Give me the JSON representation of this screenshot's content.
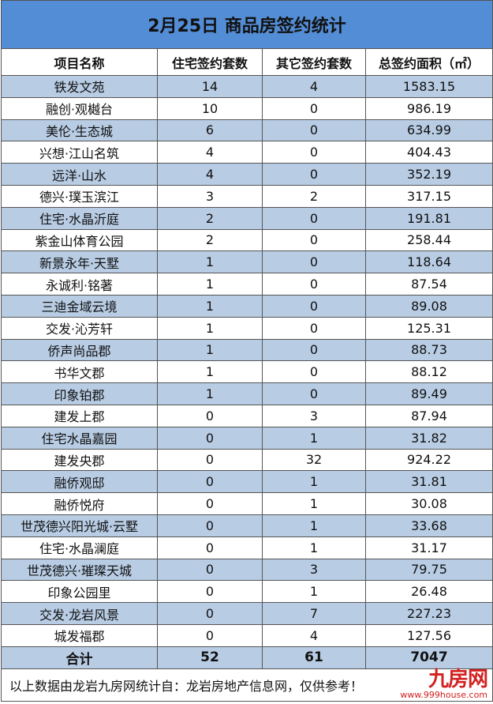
{
  "title": "2月25日 商品房签约统计",
  "headers": [
    "项目名称",
    "住宅签约套数",
    "其它签约套数",
    "总签约面积（㎡）"
  ],
  "rows": [
    [
      "铁发文苑",
      "14",
      "4",
      "1583.15"
    ],
    [
      "融创·观樾台",
      "10",
      "0",
      "986.19"
    ],
    [
      "美伦·生态城",
      "6",
      "0",
      "634.99"
    ],
    [
      "兴想·江山名筑",
      "4",
      "0",
      "404.43"
    ],
    [
      "远洋·山水",
      "4",
      "0",
      "352.19"
    ],
    [
      "德兴·璞玉滨江",
      "3",
      "2",
      "317.15"
    ],
    [
      "住宅·水晶沂庭",
      "2",
      "0",
      "191.81"
    ],
    [
      "紫金山体育公园",
      "2",
      "0",
      "258.44"
    ],
    [
      "新景永年·天墅",
      "1",
      "0",
      "118.64"
    ],
    [
      "永诚利·铭著",
      "1",
      "0",
      "87.54"
    ],
    [
      "三迪金域云境",
      "1",
      "0",
      "89.08"
    ],
    [
      "交发·沁芳轩",
      "1",
      "0",
      "125.31"
    ],
    [
      "侨声尚品郡",
      "1",
      "0",
      "88.73"
    ],
    [
      "书华文郡",
      "1",
      "0",
      "88.12"
    ],
    [
      "印象铂郡",
      "1",
      "0",
      "89.49"
    ],
    [
      "建发上郡",
      "0",
      "3",
      "87.94"
    ],
    [
      "住宅水晶嘉园",
      "0",
      "1",
      "31.82"
    ],
    [
      "建发央郡",
      "0",
      "32",
      "924.22"
    ],
    [
      "融侨观邸",
      "0",
      "1",
      "31.81"
    ],
    [
      "融侨悦府",
      "0",
      "1",
      "30.08"
    ],
    [
      "世茂德兴阳光城·云墅",
      "0",
      "1",
      "33.68"
    ],
    [
      "住宅·水晶澜庭",
      "0",
      "1",
      "31.17"
    ],
    [
      "世茂德兴·璀璨天城",
      "0",
      "3",
      "79.75"
    ],
    [
      "印象公园里",
      "0",
      "1",
      "26.48"
    ],
    [
      "交发·龙岩风景",
      "0",
      "7",
      "227.23"
    ],
    [
      "城发福郡",
      "0",
      "4",
      "127.56"
    ]
  ],
  "total": [
    "合计",
    "52",
    "61",
    "7047"
  ],
  "footer": "以上数据由龙岩九房网统计自：龙岩房地产信息网，仅供参考！",
  "watermark": {
    "logo": "九房网",
    "url": "www.999house.com"
  },
  "colors": {
    "title_bg": "#538dd5",
    "band": "#b8cce4",
    "watermark": "#d42020"
  }
}
